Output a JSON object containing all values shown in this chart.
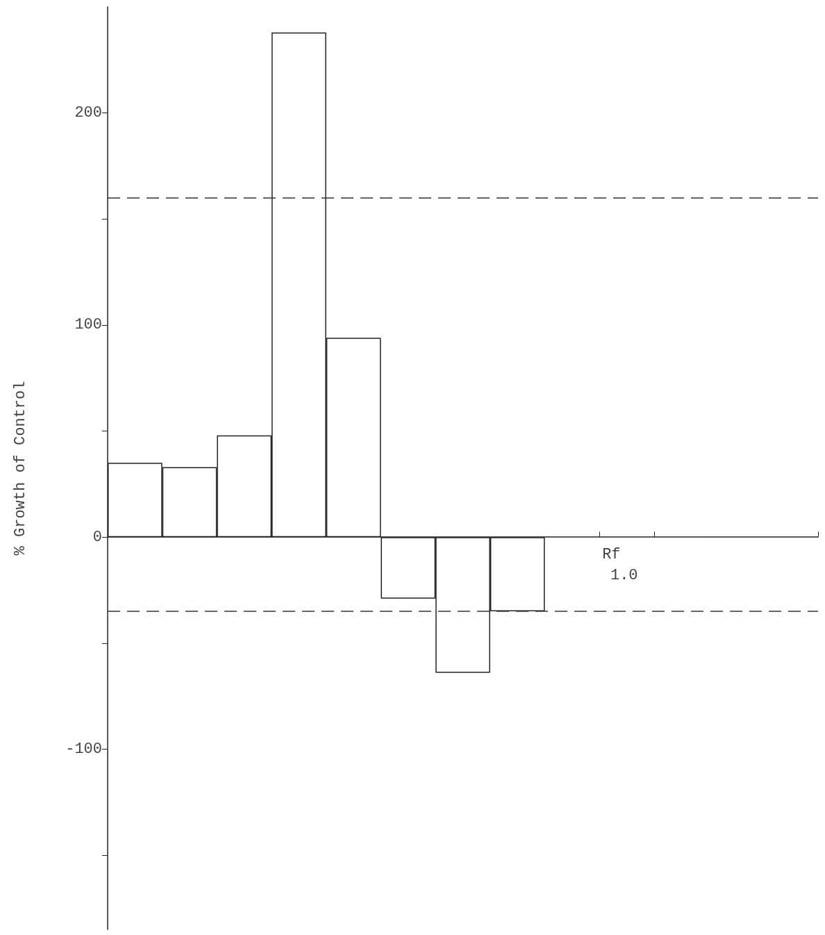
{
  "chart_data": {
    "type": "bar",
    "xlabel": "Rf",
    "ylabel": "% Growth of Control",
    "categories": [
      null,
      null,
      null,
      null,
      null,
      null,
      null,
      null,
      null,
      null,
      null,
      null,
      null
    ],
    "values": [
      35,
      33,
      48,
      238,
      94,
      -29,
      -64,
      -35,
      null,
      null,
      null,
      null,
      null
    ],
    "color": "#ffffff",
    "annotations": [
      "1.0"
    ],
    "ylim": [
      -185,
      250
    ],
    "yticks": [
      {
        "value": -150,
        "label": null
      },
      -100,
      {
        "value": -50,
        "label": null
      },
      0,
      {
        "value": 50,
        "label": null
      },
      100,
      {
        "value": 150,
        "label": null
      },
      200
    ],
    "ref_lines": [
      {
        "axis": "y",
        "value": 160,
        "line_style": "dashed",
        "color": "#333333"
      },
      {
        "axis": "y",
        "value": -35,
        "line_style": "dashed",
        "color": "#333333"
      }
    ]
  }
}
